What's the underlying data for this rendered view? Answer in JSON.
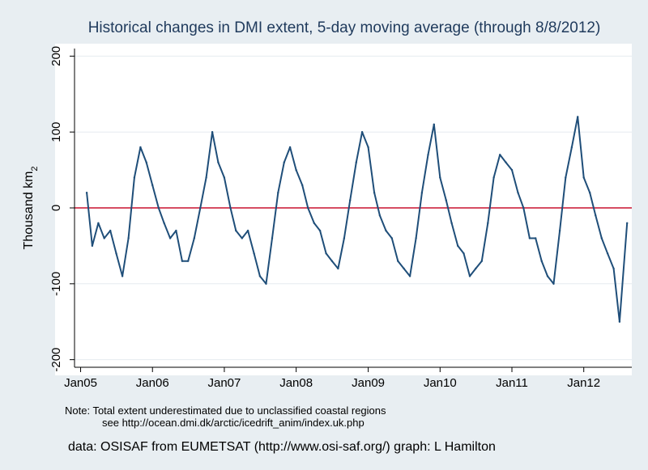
{
  "chart_data": {
    "type": "line",
    "title": "Historical changes in DMI extent, 5-day moving average (through 8/8/2012)",
    "xlabel": "",
    "ylabel": "Thousand km",
    "ylabel_sub": "2",
    "ylim": [
      -210,
      210
    ],
    "xlim": [
      "2004-12-01",
      "2012-09-01"
    ],
    "yticks": [
      "-200",
      "-100",
      "0",
      "100",
      "200"
    ],
    "xticks": [
      "Jan05",
      "Jan06",
      "Jan07",
      "Jan08",
      "Jan09",
      "Jan10",
      "Jan11",
      "Jan12"
    ],
    "reference_line": 0,
    "grid": "horizontal",
    "line_color": "#1f4e79",
    "reference_color": "#c8102e",
    "series": [
      {
        "x": [
          "2005-02-01",
          "2005-03-01",
          "2005-04-01",
          "2005-05-01",
          "2005-06-01",
          "2005-07-01",
          "2005-08-01",
          "2005-09-01",
          "2005-10-01",
          "2005-11-01",
          "2005-12-01",
          "2006-01-01",
          "2006-02-01",
          "2006-03-01",
          "2006-04-01",
          "2006-05-01",
          "2006-06-01",
          "2006-07-01",
          "2006-08-01",
          "2006-09-01",
          "2006-10-01",
          "2006-11-01",
          "2006-12-01",
          "2007-01-01",
          "2007-02-01",
          "2007-03-01",
          "2007-04-01",
          "2007-05-01",
          "2007-06-01",
          "2007-07-01",
          "2007-08-01",
          "2007-09-01",
          "2007-10-01",
          "2007-11-01",
          "2007-12-01",
          "2008-01-01",
          "2008-02-01",
          "2008-03-01",
          "2008-04-01",
          "2008-05-01",
          "2008-06-01",
          "2008-07-01",
          "2008-08-01",
          "2008-09-01",
          "2008-10-01",
          "2008-11-01",
          "2008-12-01",
          "2009-01-01",
          "2009-02-01",
          "2009-03-01",
          "2009-04-01",
          "2009-05-01",
          "2009-06-01",
          "2009-07-01",
          "2009-08-01",
          "2009-09-01",
          "2009-10-01",
          "2009-11-01",
          "2009-12-01",
          "2010-01-01",
          "2010-02-01",
          "2010-03-01",
          "2010-04-01",
          "2010-05-01",
          "2010-06-01",
          "2010-07-01",
          "2010-08-01",
          "2010-09-01",
          "2010-10-01",
          "2010-11-01",
          "2010-12-01",
          "2011-01-01",
          "2011-02-01",
          "2011-03-01",
          "2011-04-01",
          "2011-05-01",
          "2011-06-01",
          "2011-07-01",
          "2011-08-01",
          "2011-09-01",
          "2011-10-01",
          "2011-11-01",
          "2011-12-01",
          "2012-01-01",
          "2012-02-01",
          "2012-03-01",
          "2012-04-01",
          "2012-05-01",
          "2012-06-01",
          "2012-07-01",
          "2012-08-08"
        ],
        "values": [
          20,
          -50,
          -20,
          -40,
          -30,
          -60,
          -90,
          -40,
          40,
          80,
          60,
          30,
          0,
          -20,
          -40,
          -30,
          -70,
          -70,
          -40,
          0,
          40,
          100,
          60,
          40,
          0,
          -30,
          -40,
          -30,
          -60,
          -90,
          -100,
          -40,
          20,
          60,
          80,
          50,
          30,
          0,
          -20,
          -30,
          -60,
          -70,
          -80,
          -40,
          10,
          60,
          100,
          80,
          20,
          -10,
          -30,
          -40,
          -70,
          -80,
          -90,
          -40,
          20,
          70,
          110,
          40,
          10,
          -20,
          -50,
          -60,
          -90,
          -80,
          -70,
          -20,
          40,
          70,
          60,
          50,
          20,
          0,
          -40,
          -40,
          -70,
          -90,
          -100,
          -30,
          40,
          80,
          120,
          40,
          20,
          -10,
          -40,
          -60,
          -80,
          -150,
          -20
        ]
      }
    ]
  },
  "notes": {
    "line1": "Note:  Total extent underestimated due to unclassified coastal regions",
    "line2": "see http://ocean.dmi.dk/arctic/icedrift_anim/index.uk.php",
    "credit": "data:  OSISAF from EUMETSAT (http://www.osi-saf.org/) graph:  L Hamilton"
  }
}
